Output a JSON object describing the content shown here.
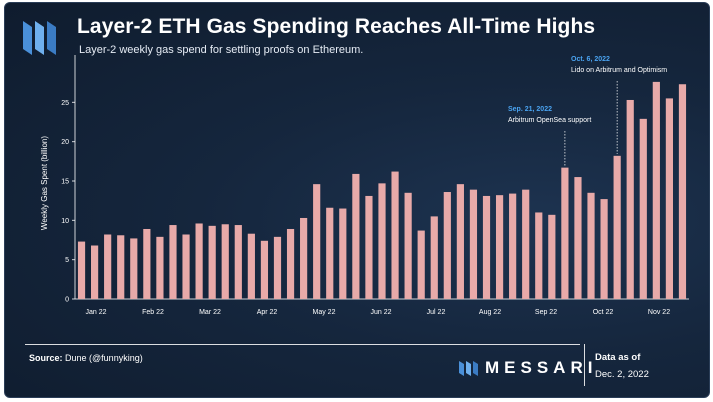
{
  "header": {
    "title": "Layer-2 ETH Gas Spending Reaches All-Time Highs",
    "subtitle": "Layer-2 weekly gas spend for settling proofs on Ethereum."
  },
  "footer": {
    "source_label": "Source:",
    "source_value": "Dune (@funnyking)",
    "brand": "MESSARI",
    "as_of_label": "Data as of",
    "as_of_date": "Dec. 2, 2022"
  },
  "colors": {
    "bar": "#e8aaa9",
    "annotation_date": "#4aa3f0",
    "text": "#ffffff"
  },
  "chart_data": {
    "type": "bar",
    "ylabel": "Weekly Gas Spent (billion)",
    "xlabel": "",
    "ylim": [
      0,
      30
    ],
    "yticks": [
      0,
      5,
      10,
      15,
      20,
      25
    ],
    "xtick_labels": [
      "Jan 22",
      "Feb 22",
      "Mar 22",
      "Apr 22",
      "May 22",
      "Jun 22",
      "Jul 22",
      "Aug 22",
      "Sep 22",
      "Oct 22",
      "Nov 22"
    ],
    "values": [
      7.3,
      6.8,
      8.2,
      8.1,
      7.7,
      8.9,
      7.9,
      9.4,
      8.2,
      9.6,
      9.3,
      9.5,
      9.4,
      8.3,
      7.4,
      7.9,
      8.9,
      10.3,
      14.6,
      11.6,
      11.5,
      15.9,
      13.1,
      14.7,
      16.2,
      13.5,
      8.7,
      10.5,
      13.6,
      14.6,
      13.9,
      13.1,
      13.2,
      13.4,
      13.9,
      11.0,
      10.7,
      16.7,
      15.5,
      13.5,
      12.7,
      18.2,
      25.3,
      22.9,
      27.6,
      25.5,
      27.3
    ],
    "annotations": [
      {
        "date": "Sep. 21, 2022",
        "text": "Arbitrum OpenSea support"
      },
      {
        "date": "Oct. 6, 2022",
        "text": "Lido on Arbitrum and Optimism"
      }
    ],
    "grid": false
  }
}
